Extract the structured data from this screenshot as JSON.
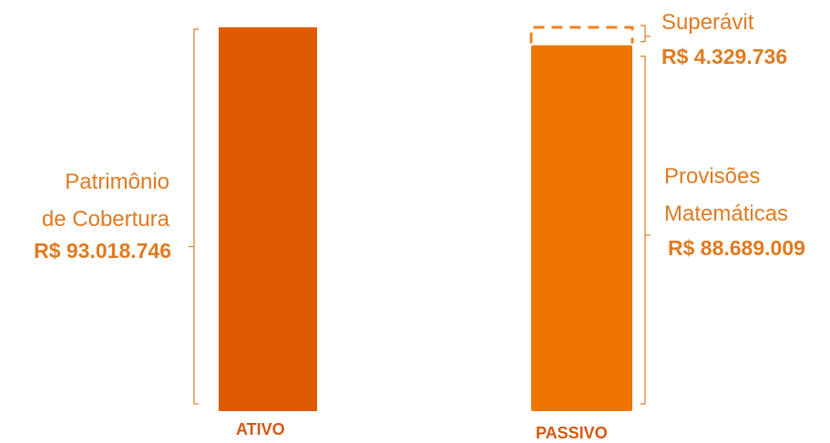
{
  "chart_data": {
    "type": "bar",
    "categories": [
      "ATIVO",
      "PASSIVO"
    ],
    "values": {
      "ativo": {
        "patrimonio_de_cobertura": 93018746
      },
      "passivo": {
        "provisoes_matematicas": 88689009,
        "superavit": 4329736
      }
    },
    "colors": {
      "ativo_bar": "#e05a00",
      "passivo_bar": "#ee7500",
      "bracket": "#e07a1f",
      "dashed": "#f0801f"
    },
    "annotations": {
      "left_label_line1": "Patrimônio",
      "left_label_line2": "de Cobertura",
      "left_value": "R$ 93.018.746",
      "right_top_label": "Superávit",
      "right_top_value": "R$ 4.329.736",
      "right_label_line1": "Provisões",
      "right_label_line2": "Matemáticas",
      "right_value": "R$ 88.689.009"
    }
  }
}
